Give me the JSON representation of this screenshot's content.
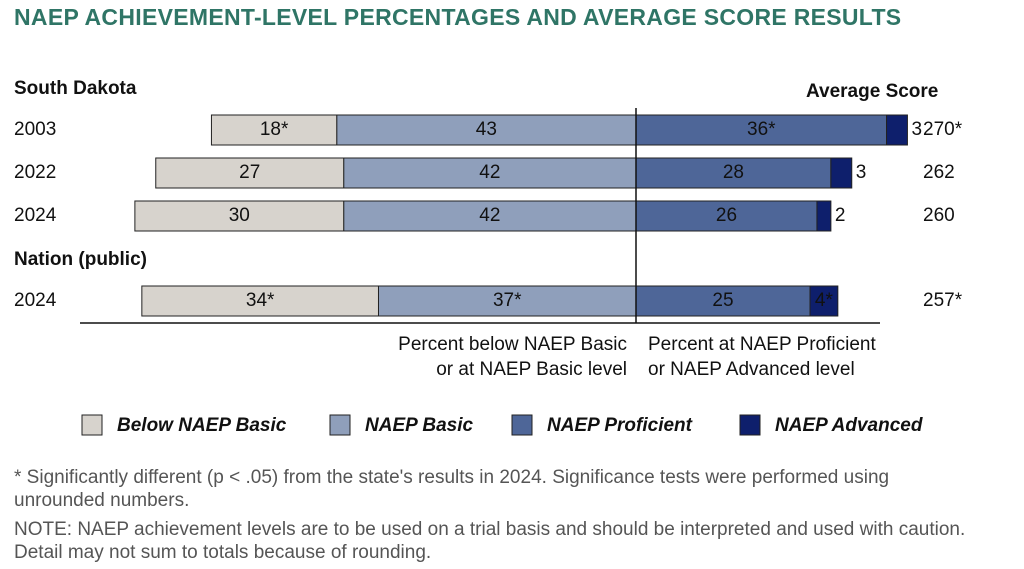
{
  "chart_data": {
    "type": "diverging_bar",
    "title": "NAEP ACHIEVEMENT-LEVEL PERCENTAGES AND AVERAGE SCORE RESULTS",
    "categories": [
      "2003",
      "2022",
      "2024",
      "2024"
    ],
    "group_labels": [
      "South Dakota",
      null,
      null,
      "Nation (public)"
    ],
    "score_header": "Average Score",
    "average_score": {
      "values": [
        270,
        262,
        260,
        257
      ],
      "value_labels": [
        "270*",
        "262",
        "260",
        "257*"
      ]
    },
    "series": [
      {
        "name": "Below NAEP Basic",
        "color": "#d7d3cd",
        "side": "left",
        "values": [
          18,
          27,
          30,
          34
        ],
        "value_labels": [
          "18*",
          "27",
          "30",
          "34*"
        ]
      },
      {
        "name": "NAEP Basic",
        "color": "#8f9fbb",
        "side": "left",
        "values": [
          43,
          42,
          42,
          37
        ],
        "value_labels": [
          "43",
          "42",
          "42",
          "37*"
        ]
      },
      {
        "name": "NAEP Proficient",
        "color": "#4e6698",
        "side": "right",
        "values": [
          36,
          28,
          26,
          25
        ],
        "value_labels": [
          "36*",
          "28",
          "26",
          "25"
        ]
      },
      {
        "name": "NAEP Advanced",
        "color": "#0e1f6c",
        "side": "right",
        "values": [
          3,
          3,
          2,
          4
        ],
        "value_labels": [
          "3",
          "3",
          "2",
          "4*"
        ]
      }
    ],
    "left_caption": [
      "Percent below NAEP Basic",
      "or at NAEP Basic level"
    ],
    "right_caption": [
      "Percent at NAEP Proficient",
      "or NAEP Advanced level"
    ],
    "footnotes": [
      "* Significantly different (p < .05) from the state's results in 2024. Significance tests were performed using unrounded numbers.",
      "NOTE: NAEP achievement levels are to be used on a trial basis and should be interpreted and used with caution. Detail may not sum to totals because of rounding."
    ]
  }
}
